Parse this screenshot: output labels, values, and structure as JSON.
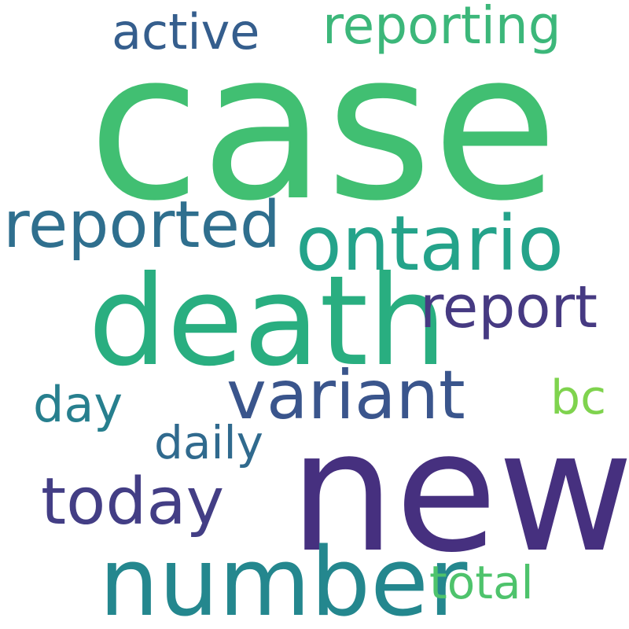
{
  "words": {
    "case": {
      "text": "case",
      "color": "#41bf72"
    },
    "new": {
      "text": "new",
      "color": "#46307f"
    },
    "death": {
      "text": "death",
      "color": "#29ae80"
    },
    "number": {
      "text": "number",
      "color": "#24878e"
    },
    "ontario": {
      "text": "ontario",
      "color": "#24a38a"
    },
    "variant": {
      "text": "variant",
      "color": "#3a558c"
    },
    "reported": {
      "text": "reported",
      "color": "#2f6f8e"
    },
    "today": {
      "text": "today",
      "color": "#433e85"
    },
    "report": {
      "text": "report",
      "color": "#463a82"
    },
    "reporting": {
      "text": "reporting",
      "color": "#3cb77a"
    },
    "active": {
      "text": "active",
      "color": "#355e8d"
    },
    "day": {
      "text": "day",
      "color": "#277f8e"
    },
    "daily": {
      "text": "daily",
      "color": "#306a8e"
    },
    "total": {
      "text": "total",
      "color": "#4ec36c"
    },
    "bc": {
      "text": "bc",
      "color": "#7fd34e"
    }
  }
}
